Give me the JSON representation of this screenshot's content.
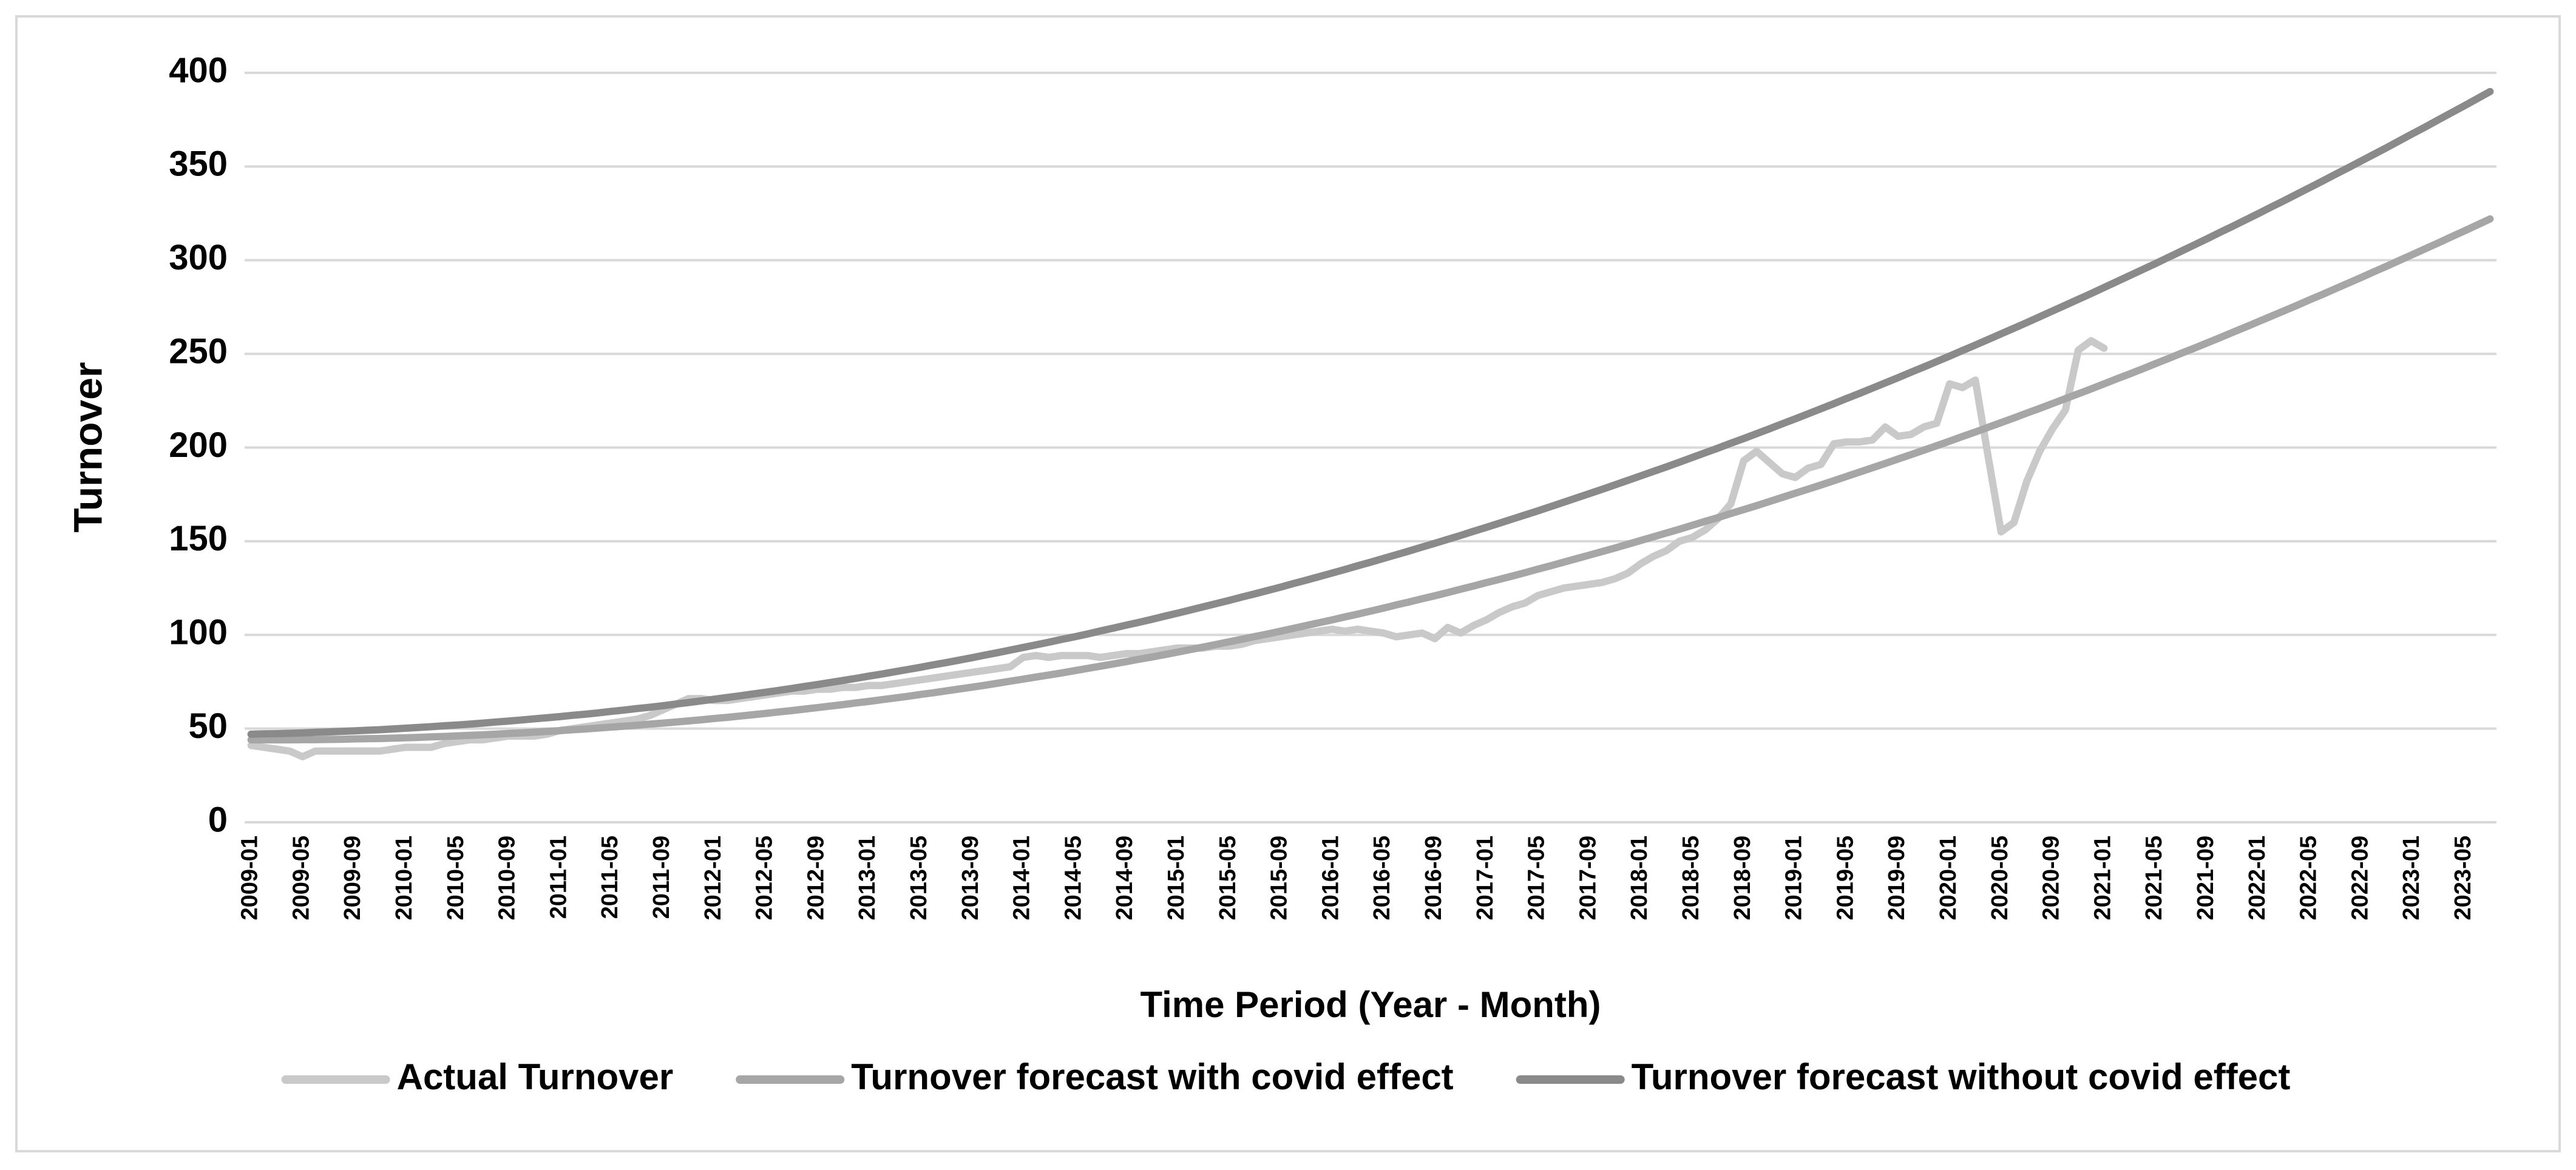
{
  "chart_data": {
    "type": "line",
    "y_label": "Turnover",
    "x_label": "Time Period (Year - Month)",
    "categories": [
      "2009-01",
      null,
      null,
      null,
      "2009-05",
      null,
      null,
      null,
      "2009-09",
      null,
      null,
      null,
      "2010-01",
      null,
      null,
      null,
      "2010-05",
      null,
      null,
      null,
      "2010-09",
      null,
      null,
      null,
      "2011-01",
      null,
      null,
      null,
      "2011-05",
      null,
      null,
      null,
      "2011-09",
      null,
      null,
      null,
      "2012-01",
      null,
      null,
      null,
      "2012-05",
      null,
      null,
      null,
      "2012-09",
      null,
      null,
      null,
      "2013-01",
      null,
      null,
      null,
      "2013-05",
      null,
      null,
      null,
      "2013-09",
      null,
      null,
      null,
      "2014-01",
      null,
      null,
      null,
      "2014-05",
      null,
      null,
      null,
      "2014-09",
      null,
      null,
      null,
      "2015-01",
      null,
      null,
      null,
      "2015-05",
      null,
      null,
      null,
      "2015-09",
      null,
      null,
      null,
      "2016-01",
      null,
      null,
      null,
      "2016-05",
      null,
      null,
      null,
      "2016-09",
      null,
      null,
      null,
      "2017-01",
      null,
      null,
      null,
      "2017-05",
      null,
      null,
      null,
      "2017-09",
      null,
      null,
      null,
      "2018-01",
      null,
      null,
      null,
      "2018-05",
      null,
      null,
      null,
      "2018-09",
      null,
      null,
      null,
      "2019-01",
      null,
      null,
      null,
      "2019-05",
      null,
      null,
      null,
      "2019-09",
      null,
      null,
      null,
      "2020-01",
      null,
      null,
      null,
      "2020-05",
      null,
      null,
      null,
      "2020-09",
      null,
      null,
      null,
      "2021-01",
      null,
      null,
      null,
      "2021-05",
      null,
      null,
      null,
      "2021-09",
      null,
      null,
      null,
      "2022-01",
      null,
      null,
      null,
      "2022-05",
      null,
      null,
      null,
      "2022-09",
      null,
      null,
      null,
      "2023-01",
      null,
      null,
      null,
      "2023-05",
      null,
      null
    ],
    "series": [
      {
        "name": "Actual Turnover",
        "color": "#c9c9c9",
        "values": [
          41,
          40,
          39,
          38,
          35,
          38,
          38,
          38,
          38,
          38,
          38,
          39,
          40,
          40,
          40,
          42,
          43,
          44,
          44,
          45,
          46,
          46,
          46,
          47,
          49,
          50,
          51,
          52,
          53,
          54,
          55,
          57,
          60,
          63,
          66,
          66,
          65,
          65,
          66,
          67,
          68,
          69,
          70,
          70,
          71,
          71,
          72,
          72,
          73,
          73,
          74,
          75,
          76,
          77,
          78,
          79,
          80,
          81,
          82,
          83,
          88,
          89,
          88,
          89,
          89,
          89,
          88,
          89,
          90,
          90,
          91,
          92,
          93,
          93,
          93,
          94,
          94,
          95,
          97,
          98,
          99,
          100,
          101,
          102,
          103,
          102,
          103,
          102,
          101,
          99,
          100,
          101,
          98,
          104,
          101,
          105,
          108,
          112,
          115,
          117,
          121,
          123,
          125,
          126,
          127,
          128,
          130,
          133,
          138,
          142,
          145,
          150,
          152,
          156,
          162,
          170,
          193,
          198,
          192,
          186,
          184,
          189,
          191,
          202,
          203,
          203,
          204,
          211,
          206,
          207,
          211,
          213,
          234,
          232,
          236,
          195,
          155,
          160,
          182,
          198,
          210,
          220,
          252,
          257,
          253,
          null,
          null,
          null,
          null,
          null,
          null,
          null,
          null,
          null,
          null,
          null,
          null,
          null,
          null,
          null,
          null,
          null,
          null,
          null,
          null,
          null,
          null,
          null,
          null,
          null,
          null,
          null,
          null,
          null,
          null
        ]
      },
      {
        "name": "Turnover forecast with covid effect",
        "color": "#a6a6a6",
        "values": [
          44.0,
          44.0,
          44.0,
          44.0,
          44.1,
          44.1,
          44.2,
          44.3,
          44.5,
          44.6,
          44.7,
          44.9,
          45.1,
          45.3,
          45.6,
          45.8,
          46.1,
          46.4,
          46.7,
          47.0,
          47.4,
          47.7,
          48.1,
          48.5,
          48.9,
          49.4,
          49.8,
          50.3,
          50.8,
          51.3,
          51.8,
          52.4,
          52.9,
          53.5,
          54.1,
          54.7,
          55.4,
          56.0,
          56.7,
          57.4,
          58.1,
          58.9,
          59.6,
          60.4,
          61.2,
          62.0,
          62.8,
          63.7,
          64.5,
          65.4,
          66.3,
          67.2,
          68.2,
          69.1,
          70.1,
          71.1,
          72.1,
          73.1,
          74.2,
          75.3,
          76.4,
          77.5,
          78.6,
          79.7,
          80.9,
          82.1,
          83.3,
          84.5,
          85.7,
          87.0,
          88.2,
          89.5,
          90.8,
          92.2,
          93.5,
          94.9,
          96.3,
          97.7,
          99.1,
          100.5,
          102.0,
          103.5,
          105.0,
          106.5,
          108.0,
          109.6,
          111.1,
          112.7,
          114.3,
          116.0,
          117.6,
          119.3,
          120.9,
          122.6,
          124.4,
          126.1,
          127.9,
          129.6,
          131.4,
          133.2,
          135.1,
          136.9,
          138.8,
          140.7,
          142.6,
          144.5,
          146.4,
          148.4,
          150.4,
          152.4,
          154.4,
          156.4,
          158.5,
          160.6,
          162.6,
          164.8,
          166.9,
          169.0,
          171.2,
          173.4,
          175.6,
          177.8,
          180.0,
          182.3,
          184.6,
          186.9,
          189.2,
          191.5,
          193.9,
          196.2,
          198.6,
          201.0,
          203.4,
          205.9,
          208.3,
          210.8,
          213.3,
          215.8,
          218.4,
          220.9,
          223.5,
          226.1,
          228.7,
          231.3,
          234.0,
          236.7,
          239.3,
          242.0,
          244.8,
          247.5,
          250.3,
          253.0,
          255.8,
          258.6,
          261.5,
          264.3,
          267.2,
          270.1,
          273.0,
          275.9,
          278.9,
          281.8,
          284.8,
          287.8,
          290.8,
          293.9,
          296.9,
          300.0,
          303.1,
          306.2,
          309.3,
          312.5,
          315.6,
          318.8,
          322.0
        ]
      },
      {
        "name": "Turnover forecast without covid effect",
        "color": "#8a8a8a",
        "values": [
          47.0,
          47.2,
          47.3,
          47.5,
          47.7,
          48.0,
          48.2,
          48.5,
          48.8,
          49.1,
          49.4,
          49.8,
          50.2,
          50.6,
          51.0,
          51.5,
          51.9,
          52.4,
          52.9,
          53.5,
          54.0,
          54.6,
          55.2,
          55.8,
          56.4,
          57.1,
          57.7,
          58.4,
          59.2,
          59.9,
          60.7,
          61.4,
          62.2,
          63.1,
          63.9,
          64.8,
          65.7,
          66.6,
          67.5,
          68.5,
          69.4,
          70.4,
          71.4,
          72.5,
          73.5,
          74.6,
          75.7,
          76.8,
          78.0,
          79.1,
          80.3,
          81.5,
          82.7,
          84.0,
          85.2,
          86.5,
          87.8,
          89.2,
          90.5,
          91.9,
          93.3,
          94.7,
          96.1,
          97.6,
          99.0,
          100.5,
          102.1,
          103.6,
          105.2,
          106.7,
          108.3,
          110.0,
          111.6,
          113.3,
          115.0,
          116.7,
          118.4,
          120.2,
          121.9,
          123.7,
          125.5,
          127.4,
          129.2,
          131.1,
          133.0,
          134.9,
          136.9,
          138.8,
          140.8,
          142.8,
          144.8,
          146.9,
          148.9,
          151.0,
          153.1,
          155.3,
          157.4,
          159.6,
          161.8,
          164.0,
          166.2,
          168.5,
          170.8,
          173.1,
          175.4,
          177.7,
          180.1,
          182.5,
          184.9,
          187.3,
          189.7,
          192.2,
          194.7,
          197.2,
          199.7,
          202.3,
          204.8,
          207.4,
          210.0,
          212.7,
          215.3,
          218.0,
          220.7,
          223.4,
          226.2,
          228.9,
          231.7,
          234.5,
          237.3,
          240.2,
          243.0,
          245.9,
          248.8,
          251.8,
          254.7,
          257.7,
          260.7,
          263.7,
          266.7,
          269.8,
          272.9,
          276.0,
          279.1,
          282.2,
          285.4,
          288.6,
          291.8,
          295.0,
          298.2,
          301.5,
          304.8,
          308.1,
          311.4,
          314.8,
          318.1,
          321.5,
          324.9,
          328.4,
          331.8,
          335.3,
          338.8,
          342.3,
          345.9,
          349.4,
          353.0,
          356.6,
          360.2,
          363.9,
          367.6,
          371.2,
          375.0,
          378.7,
          382.4,
          386.2,
          390.0
        ]
      }
    ],
    "ylim": [
      0,
      400
    ],
    "yticks": [
      0,
      50,
      100,
      150,
      200,
      250,
      300,
      350,
      400
    ],
    "grid": true,
    "legend": "bottom"
  }
}
